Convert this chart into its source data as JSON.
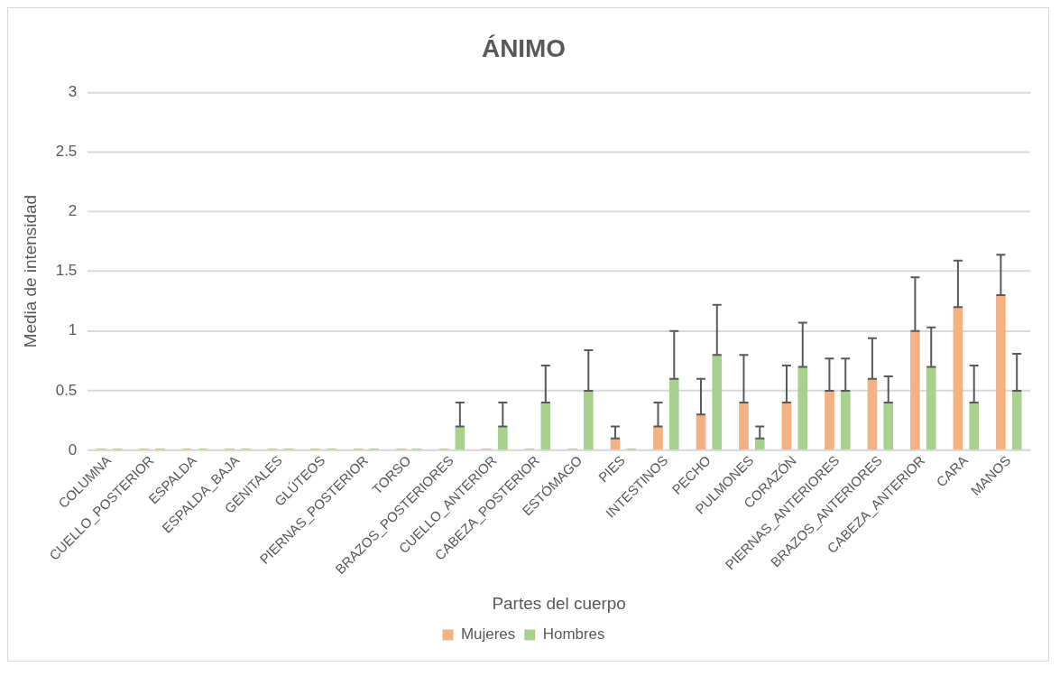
{
  "chart_data": {
    "type": "bar",
    "title": "ÁNIMO",
    "xlabel": "Partes del cuerpo",
    "ylabel": "Media de intensidad",
    "categories": [
      "COLUMNA",
      "CUELLO_POSTERIOR",
      "ESPALDA",
      "ESPALDA_BAJA",
      "GENITALES",
      "GLÚTEOS",
      "PIERNAS_POSTERIOR",
      "TORSO",
      "BRAZOS_POSTERIORES",
      "CUELLO_ANTERIOR",
      "CABEZA_POSTERIOR",
      "ESTÓMAGO",
      "PIES",
      "INTESTINOS",
      "PECHO",
      "PULMONES",
      "CORAZÓN",
      "PIERNAS_ANTERIORES",
      "BRAZOS_ANTERIORES",
      "CABEZA_ANTERIOR",
      "CARA",
      "MANOS"
    ],
    "series": [
      {
        "name": "Mujeres",
        "color": "#f4b183",
        "values": [
          0,
          0,
          0,
          0,
          0,
          0,
          0,
          0,
          0,
          0,
          0,
          0,
          0.1,
          0.2,
          0.3,
          0.4,
          0.4,
          0.5,
          0.6,
          1.0,
          1.2,
          1.3
        ],
        "errors": [
          null,
          null,
          null,
          null,
          null,
          null,
          null,
          null,
          null,
          null,
          null,
          null,
          [
            0.1,
            0.2
          ],
          [
            0.2,
            0.4
          ],
          [
            0.3,
            0.6
          ],
          [
            0.4,
            0.8
          ],
          [
            0.4,
            0.71
          ],
          [
            0.5,
            0.77
          ],
          [
            0.6,
            0.94
          ],
          [
            1.0,
            1.45
          ],
          [
            1.2,
            1.59
          ],
          [
            1.3,
            1.64
          ]
        ]
      },
      {
        "name": "Hombres",
        "color": "#a9d18e",
        "values": [
          0,
          0,
          0,
          0,
          0,
          0,
          0,
          0,
          0.2,
          0.2,
          0.4,
          0.5,
          0,
          0.6,
          0.8,
          0.1,
          0.7,
          0.5,
          0.4,
          0.7,
          0.4,
          0.5
        ],
        "errors": [
          null,
          null,
          null,
          null,
          null,
          null,
          null,
          null,
          [
            0.2,
            0.4
          ],
          [
            0.2,
            0.4
          ],
          [
            0.4,
            0.71
          ],
          [
            0.5,
            0.84
          ],
          null,
          [
            0.6,
            1.0
          ],
          [
            0.8,
            1.22
          ],
          [
            0.1,
            0.2
          ],
          [
            0.7,
            1.07
          ],
          [
            0.5,
            0.77
          ],
          [
            0.4,
            0.62
          ],
          [
            0.7,
            1.03
          ],
          [
            0.4,
            0.71
          ],
          [
            0.5,
            0.81
          ]
        ]
      }
    ],
    "ylim": [
      0,
      3
    ],
    "yticks": [
      0,
      0.5,
      1,
      1.5,
      2,
      2.5,
      3
    ],
    "grid": "y",
    "legend": "bottom"
  }
}
